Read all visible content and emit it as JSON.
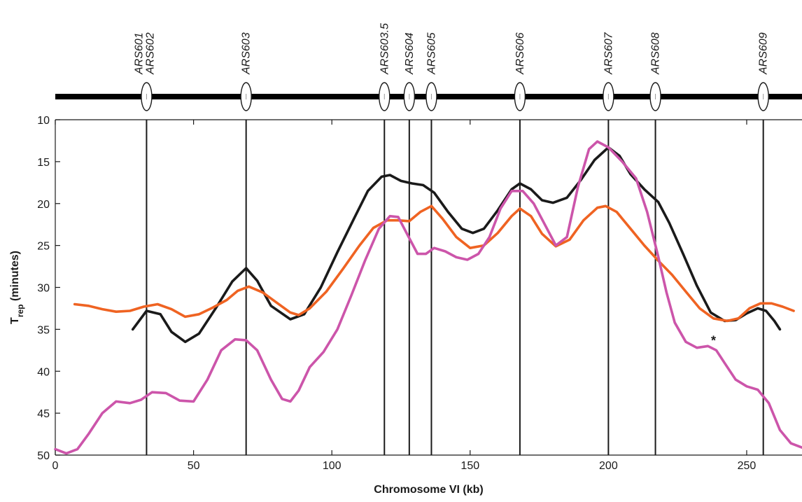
{
  "chart_data": {
    "type": "line",
    "xlabel": "Chromosome VI (kb)",
    "ylabel_main": "T",
    "ylabel_sub": "rep",
    "ylabel_suffix": " (minutes)",
    "xlim": [
      0,
      270
    ],
    "ylim": [
      10,
      50
    ],
    "y_inverted": true,
    "x_ticks": [
      0,
      50,
      100,
      150,
      200,
      250
    ],
    "y_ticks": [
      10,
      15,
      20,
      25,
      30,
      35,
      40,
      45,
      50
    ],
    "grid": false,
    "origins": [
      {
        "name": "ARS601",
        "x": 33
      },
      {
        "name": "ARS602",
        "x": 33
      },
      {
        "name": "ARS603",
        "x": 69
      },
      {
        "name": "ARS603.5",
        "x": 119
      },
      {
        "name": "ARS604",
        "x": 128
      },
      {
        "name": "ARS605",
        "x": 136
      },
      {
        "name": "ARS606",
        "x": 168
      },
      {
        "name": "ARS607",
        "x": 200
      },
      {
        "name": "ARS608",
        "x": 217
      },
      {
        "name": "ARS609",
        "x": 256
      }
    ],
    "annotation": {
      "text": "*",
      "x": 238,
      "y": 36.5
    },
    "series": [
      {
        "color": "#1a1a1a",
        "points": [
          [
            28,
            35
          ],
          [
            33,
            32.8
          ],
          [
            38,
            33.2
          ],
          [
            42,
            35.3
          ],
          [
            47,
            36.5
          ],
          [
            52,
            35.5
          ],
          [
            58,
            32.5
          ],
          [
            64,
            29.3
          ],
          [
            69,
            27.7
          ],
          [
            73,
            29.2
          ],
          [
            78,
            32.2
          ],
          [
            85,
            33.8
          ],
          [
            90,
            33.2
          ],
          [
            96,
            30.0
          ],
          [
            102,
            25.8
          ],
          [
            108,
            21.8
          ],
          [
            113,
            18.5
          ],
          [
            118,
            16.8
          ],
          [
            121,
            16.6
          ],
          [
            125,
            17.3
          ],
          [
            129,
            17.6
          ],
          [
            133,
            17.8
          ],
          [
            137,
            18.7
          ],
          [
            142,
            21.0
          ],
          [
            147,
            23.0
          ],
          [
            151,
            23.5
          ],
          [
            155,
            23.0
          ],
          [
            160,
            20.8
          ],
          [
            165,
            18.3
          ],
          [
            168,
            17.6
          ],
          [
            172,
            18.3
          ],
          [
            176,
            19.6
          ],
          [
            180,
            19.9
          ],
          [
            185,
            19.3
          ],
          [
            190,
            17.2
          ],
          [
            195,
            14.8
          ],
          [
            200,
            13.3
          ],
          [
            204,
            14.3
          ],
          [
            208,
            16.5
          ],
          [
            213,
            18.3
          ],
          [
            218,
            19.8
          ],
          [
            222,
            22.3
          ],
          [
            227,
            26.0
          ],
          [
            232,
            29.8
          ],
          [
            237,
            33.0
          ],
          [
            242,
            34.0
          ],
          [
            246,
            33.9
          ],
          [
            250,
            33.1
          ],
          [
            254,
            32.5
          ],
          [
            257,
            32.8
          ],
          [
            260,
            34.0
          ],
          [
            262,
            35.0
          ]
        ]
      },
      {
        "color": "#ef6322",
        "points": [
          [
            7,
            32.0
          ],
          [
            12,
            32.2
          ],
          [
            17,
            32.6
          ],
          [
            22,
            32.9
          ],
          [
            27,
            32.8
          ],
          [
            32,
            32.3
          ],
          [
            37,
            32.0
          ],
          [
            42,
            32.6
          ],
          [
            47,
            33.5
          ],
          [
            52,
            33.2
          ],
          [
            57,
            32.4
          ],
          [
            62,
            31.5
          ],
          [
            66,
            30.4
          ],
          [
            70,
            29.9
          ],
          [
            75,
            30.6
          ],
          [
            80,
            31.8
          ],
          [
            85,
            33.0
          ],
          [
            88,
            33.3
          ],
          [
            92,
            32.5
          ],
          [
            98,
            30.5
          ],
          [
            104,
            27.8
          ],
          [
            110,
            25.0
          ],
          [
            115,
            22.9
          ],
          [
            120,
            22.0
          ],
          [
            124,
            22.0
          ],
          [
            128,
            22.1
          ],
          [
            132,
            21.0
          ],
          [
            136,
            20.3
          ],
          [
            140,
            21.8
          ],
          [
            145,
            24.0
          ],
          [
            150,
            25.3
          ],
          [
            155,
            25.0
          ],
          [
            160,
            23.5
          ],
          [
            165,
            21.5
          ],
          [
            168,
            20.6
          ],
          [
            172,
            21.5
          ],
          [
            176,
            23.6
          ],
          [
            181,
            25.1
          ],
          [
            186,
            24.3
          ],
          [
            191,
            22.0
          ],
          [
            196,
            20.5
          ],
          [
            199,
            20.3
          ],
          [
            203,
            21.0
          ],
          [
            208,
            23.0
          ],
          [
            213,
            25.0
          ],
          [
            218,
            26.8
          ],
          [
            223,
            28.5
          ],
          [
            228,
            30.5
          ],
          [
            233,
            32.5
          ],
          [
            238,
            33.7
          ],
          [
            243,
            34.0
          ],
          [
            247,
            33.7
          ],
          [
            251,
            32.5
          ],
          [
            255,
            31.9
          ],
          [
            259,
            31.9
          ],
          [
            263,
            32.3
          ],
          [
            267,
            32.8
          ]
        ]
      },
      {
        "color": "#cc55aa",
        "points": [
          [
            0,
            49.3
          ],
          [
            4,
            49.8
          ],
          [
            8,
            49.3
          ],
          [
            12,
            47.5
          ],
          [
            17,
            45.0
          ],
          [
            22,
            43.6
          ],
          [
            27,
            43.8
          ],
          [
            31,
            43.4
          ],
          [
            35,
            42.5
          ],
          [
            40,
            42.6
          ],
          [
            45,
            43.5
          ],
          [
            50,
            43.6
          ],
          [
            55,
            41.0
          ],
          [
            60,
            37.5
          ],
          [
            65,
            36.2
          ],
          [
            69,
            36.3
          ],
          [
            73,
            37.5
          ],
          [
            78,
            41.0
          ],
          [
            82,
            43.3
          ],
          [
            85,
            43.6
          ],
          [
            88,
            42.3
          ],
          [
            92,
            39.5
          ],
          [
            97,
            37.7
          ],
          [
            102,
            35.0
          ],
          [
            107,
            31.0
          ],
          [
            112,
            26.8
          ],
          [
            117,
            23.0
          ],
          [
            121,
            21.5
          ],
          [
            124,
            21.6
          ],
          [
            127,
            23.5
          ],
          [
            131,
            26.0
          ],
          [
            134,
            26.0
          ],
          [
            137,
            25.3
          ],
          [
            141,
            25.7
          ],
          [
            145,
            26.4
          ],
          [
            149,
            26.7
          ],
          [
            153,
            26.0
          ],
          [
            157,
            24.0
          ],
          [
            161,
            20.6
          ],
          [
            165,
            18.5
          ],
          [
            169,
            18.5
          ],
          [
            173,
            20.0
          ],
          [
            177,
            22.5
          ],
          [
            181,
            25.0
          ],
          [
            185,
            24.0
          ],
          [
            189,
            18.0
          ],
          [
            193,
            13.5
          ],
          [
            196,
            12.6
          ],
          [
            200,
            13.3
          ],
          [
            205,
            15.0
          ],
          [
            210,
            17.0
          ],
          [
            214,
            21.0
          ],
          [
            218,
            26.3
          ],
          [
            221,
            30.6
          ],
          [
            224,
            34.2
          ],
          [
            228,
            36.5
          ],
          [
            232,
            37.2
          ],
          [
            236,
            37.0
          ],
          [
            239,
            37.5
          ],
          [
            242,
            39.0
          ],
          [
            246,
            41.0
          ],
          [
            250,
            41.8
          ],
          [
            254,
            42.2
          ],
          [
            258,
            43.8
          ],
          [
            262,
            47.0
          ],
          [
            266,
            48.6
          ],
          [
            270,
            49.1
          ]
        ]
      }
    ]
  }
}
